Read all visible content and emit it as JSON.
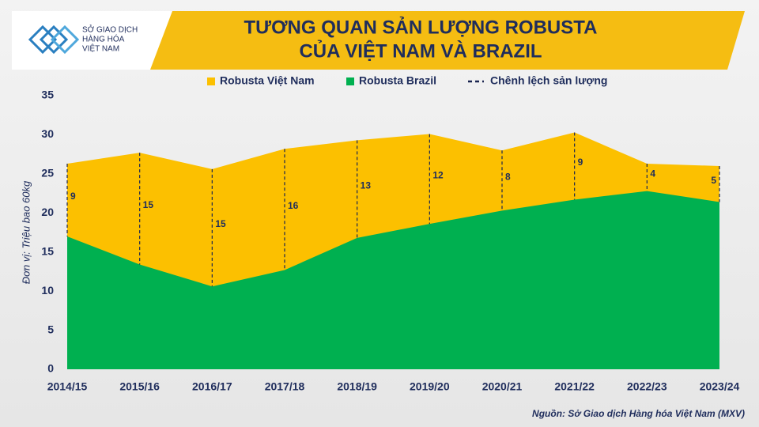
{
  "logo": [
    "SỞ GIAO DỊCH",
    "HÀNG HÓA",
    "VIỆT NAM"
  ],
  "chart_data": {
    "type": "area",
    "title": [
      "TƯƠNG QUAN SẢN LƯỢNG ROBUSTA",
      "CỦA VIỆT NAM VÀ BRAZIL"
    ],
    "y_label": "Đơn vị: Triệu bao 60kg",
    "source": "Nguồn: Sở Giao dịch Hàng hóa Việt Nam (MXV)",
    "categories": [
      "2014/15",
      "2015/16",
      "2016/17",
      "2017/18",
      "2018/19",
      "2019/20",
      "2020/21",
      "2021/22",
      "2022/23",
      "2023/24"
    ],
    "series": [
      {
        "name": "Robusta Việt Nam",
        "color": "#fcc000",
        "values": [
          26.3,
          27.7,
          25.6,
          28.2,
          29.3,
          30.1,
          28.0,
          30.3,
          26.3,
          26.0
        ]
      },
      {
        "name": "Robusta Brazil",
        "color": "#00b050",
        "values": [
          17.0,
          13.4,
          10.6,
          12.7,
          16.8,
          18.6,
          20.3,
          21.7,
          22.8,
          21.4
        ]
      },
      {
        "name": "Chênh lệch sản lượng",
        "color": "#1a2550",
        "values": [
          9,
          15,
          15,
          16,
          13,
          12,
          8,
          9,
          4,
          5
        ]
      }
    ],
    "ylim": [
      0,
      35
    ],
    "yticks": [
      0,
      5,
      10,
      15,
      20,
      25,
      30,
      35
    ],
    "grid": false
  }
}
